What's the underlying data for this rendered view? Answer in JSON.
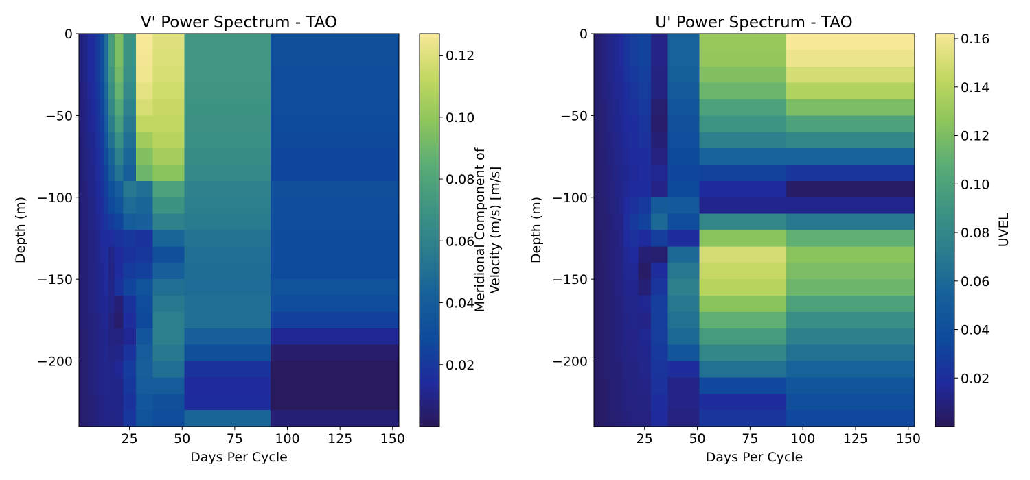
{
  "colormap": [
    "#2a1858",
    "#1f2a9c",
    "#0e4a9c",
    "#16609a",
    "#2a7c8e",
    "#3e9482",
    "#5aad76",
    "#8dc55c",
    "#c3d860",
    "#f7e898"
  ],
  "chart_data": [
    {
      "type": "heatmap",
      "title": "V' Power Spectrum - TAO",
      "xlabel": "Days Per Cycle",
      "ylabel": "Depth (m)",
      "xlim": [
        1,
        153
      ],
      "ylim": [
        -240,
        0
      ],
      "xticks": [
        25,
        50,
        75,
        100,
        125,
        150
      ],
      "yticks": [
        0,
        -50,
        -100,
        -150,
        -200
      ],
      "colorbar": {
        "label_lines": [
          "Meridional Component of",
          "Velocity (m/s) [m/s]"
        ],
        "ticks": [
          0.02,
          0.04,
          0.06,
          0.08,
          0.1,
          0.12
        ],
        "tick_labels": [
          "0.02",
          "0.04",
          "0.06",
          "0.08",
          "0.10",
          "0.12"
        ],
        "range": [
          0.0,
          0.127
        ]
      },
      "x_edges": [
        1,
        3,
        5,
        7,
        9,
        11,
        13,
        15,
        18,
        22,
        28,
        36,
        51,
        92,
        153
      ],
      "y_edges": [
        0,
        -10,
        -20,
        -30,
        -40,
        -50,
        -60,
        -70,
        -80,
        -90,
        -100,
        -110,
        -120,
        -130,
        -140,
        -150,
        -160,
        -170,
        -180,
        -190,
        -200,
        -210,
        -220,
        -230,
        -240
      ],
      "values": [
        [
          0.008,
          0.01,
          0.014,
          0.016,
          0.022,
          0.03,
          0.048,
          0.075,
          0.095,
          0.07,
          0.127,
          0.12,
          0.072,
          0.032
        ],
        [
          0.008,
          0.01,
          0.014,
          0.016,
          0.022,
          0.03,
          0.048,
          0.075,
          0.095,
          0.07,
          0.126,
          0.119,
          0.072,
          0.032
        ],
        [
          0.008,
          0.01,
          0.014,
          0.016,
          0.022,
          0.03,
          0.048,
          0.072,
          0.092,
          0.068,
          0.125,
          0.118,
          0.072,
          0.031
        ],
        [
          0.007,
          0.009,
          0.013,
          0.015,
          0.02,
          0.028,
          0.045,
          0.068,
          0.088,
          0.064,
          0.122,
          0.116,
          0.071,
          0.031
        ],
        [
          0.007,
          0.009,
          0.012,
          0.014,
          0.019,
          0.026,
          0.042,
          0.064,
          0.082,
          0.06,
          0.118,
          0.114,
          0.07,
          0.03
        ],
        [
          0.007,
          0.009,
          0.012,
          0.013,
          0.018,
          0.024,
          0.038,
          0.058,
          0.076,
          0.055,
          0.112,
          0.112,
          0.069,
          0.029
        ],
        [
          0.006,
          0.008,
          0.011,
          0.012,
          0.017,
          0.022,
          0.034,
          0.052,
          0.068,
          0.05,
          0.104,
          0.11,
          0.068,
          0.028
        ],
        [
          0.006,
          0.008,
          0.01,
          0.012,
          0.016,
          0.02,
          0.03,
          0.045,
          0.06,
          0.046,
          0.096,
          0.105,
          0.066,
          0.027
        ],
        [
          0.006,
          0.008,
          0.01,
          0.011,
          0.015,
          0.019,
          0.026,
          0.04,
          0.052,
          0.042,
          0.09,
          0.098,
          0.064,
          0.027
        ],
        [
          0.006,
          0.007,
          0.01,
          0.011,
          0.014,
          0.018,
          0.024,
          0.032,
          0.04,
          0.055,
          0.05,
          0.078,
          0.06,
          0.032
        ],
        [
          0.006,
          0.007,
          0.009,
          0.01,
          0.013,
          0.016,
          0.022,
          0.028,
          0.034,
          0.048,
          0.045,
          0.07,
          0.058,
          0.031
        ],
        [
          0.006,
          0.007,
          0.009,
          0.01,
          0.012,
          0.015,
          0.018,
          0.022,
          0.026,
          0.04,
          0.042,
          0.06,
          0.056,
          0.03
        ],
        [
          0.005,
          0.006,
          0.008,
          0.009,
          0.011,
          0.014,
          0.016,
          0.015,
          0.018,
          0.02,
          0.018,
          0.045,
          0.052,
          0.029
        ],
        [
          0.005,
          0.006,
          0.008,
          0.009,
          0.011,
          0.013,
          0.015,
          0.01,
          0.014,
          0.018,
          0.02,
          0.032,
          0.05,
          0.029
        ],
        [
          0.005,
          0.006,
          0.008,
          0.009,
          0.01,
          0.012,
          0.014,
          0.009,
          0.015,
          0.022,
          0.024,
          0.042,
          0.049,
          0.029
        ],
        [
          0.005,
          0.006,
          0.008,
          0.009,
          0.01,
          0.012,
          0.014,
          0.01,
          0.018,
          0.026,
          0.034,
          0.05,
          0.048,
          0.034
        ],
        [
          0.005,
          0.006,
          0.008,
          0.009,
          0.01,
          0.012,
          0.012,
          0.01,
          0.006,
          0.018,
          0.03,
          0.055,
          0.05,
          0.03
        ],
        [
          0.005,
          0.006,
          0.007,
          0.008,
          0.009,
          0.011,
          0.012,
          0.008,
          0.004,
          0.016,
          0.028,
          0.058,
          0.05,
          0.024
        ],
        [
          0.004,
          0.005,
          0.007,
          0.008,
          0.009,
          0.01,
          0.011,
          0.008,
          0.008,
          0.012,
          0.035,
          0.058,
          0.042,
          0.012
        ],
        [
          0.004,
          0.005,
          0.007,
          0.008,
          0.009,
          0.01,
          0.011,
          0.009,
          0.01,
          0.018,
          0.04,
          0.055,
          0.032,
          0.004
        ],
        [
          0.004,
          0.005,
          0.007,
          0.008,
          0.009,
          0.01,
          0.011,
          0.01,
          0.012,
          0.022,
          0.042,
          0.05,
          0.018,
          0.001
        ],
        [
          0.004,
          0.005,
          0.007,
          0.008,
          0.009,
          0.01,
          0.011,
          0.01,
          0.01,
          0.02,
          0.04,
          0.04,
          0.014,
          0.001
        ],
        [
          0.004,
          0.005,
          0.006,
          0.007,
          0.008,
          0.009,
          0.01,
          0.01,
          0.01,
          0.018,
          0.036,
          0.032,
          0.016,
          0.001
        ],
        [
          0.004,
          0.005,
          0.006,
          0.007,
          0.008,
          0.009,
          0.01,
          0.009,
          0.01,
          0.02,
          0.034,
          0.03,
          0.045,
          0.006
        ]
      ]
    },
    {
      "type": "heatmap",
      "title": "U' Power Spectrum - TAO",
      "xlabel": "Days Per Cycle",
      "ylabel": "Depth (m)",
      "xlim": [
        1,
        153
      ],
      "ylim": [
        -240,
        0
      ],
      "xticks": [
        25,
        50,
        75,
        100,
        125,
        150
      ],
      "yticks": [
        0,
        -50,
        -100,
        -150,
        -200
      ],
      "colorbar": {
        "label_lines": [
          "UVEL"
        ],
        "ticks": [
          0.02,
          0.04,
          0.06,
          0.08,
          0.1,
          0.12,
          0.14,
          0.16
        ],
        "tick_labels": [
          "0.02",
          "0.04",
          "0.06",
          "0.08",
          "0.10",
          "0.12",
          "0.14",
          "0.16"
        ],
        "range": [
          0.0,
          0.162
        ]
      },
      "x_edges": [
        1,
        3,
        5,
        7,
        9,
        11,
        13,
        15,
        18,
        22,
        28,
        36,
        51,
        92,
        153
      ],
      "y_edges": [
        0,
        -10,
        -20,
        -30,
        -40,
        -50,
        -60,
        -70,
        -80,
        -90,
        -100,
        -110,
        -120,
        -130,
        -140,
        -150,
        -160,
        -170,
        -180,
        -190,
        -200,
        -210,
        -220,
        -230,
        -240
      ],
      "values": [
        [
          0.006,
          0.008,
          0.01,
          0.012,
          0.014,
          0.016,
          0.018,
          0.024,
          0.028,
          0.032,
          0.012,
          0.055,
          0.13,
          0.162
        ],
        [
          0.006,
          0.008,
          0.01,
          0.012,
          0.014,
          0.016,
          0.018,
          0.024,
          0.028,
          0.032,
          0.012,
          0.055,
          0.128,
          0.158
        ],
        [
          0.006,
          0.008,
          0.01,
          0.012,
          0.014,
          0.016,
          0.017,
          0.022,
          0.026,
          0.03,
          0.011,
          0.054,
          0.122,
          0.15
        ],
        [
          0.006,
          0.008,
          0.01,
          0.011,
          0.013,
          0.015,
          0.016,
          0.02,
          0.024,
          0.028,
          0.011,
          0.05,
          0.114,
          0.138
        ],
        [
          0.006,
          0.007,
          0.009,
          0.011,
          0.013,
          0.014,
          0.016,
          0.019,
          0.022,
          0.026,
          0.006,
          0.045,
          0.1,
          0.12
        ],
        [
          0.006,
          0.007,
          0.009,
          0.011,
          0.012,
          0.014,
          0.015,
          0.018,
          0.02,
          0.024,
          0.005,
          0.042,
          0.09,
          0.1
        ],
        [
          0.005,
          0.007,
          0.009,
          0.01,
          0.012,
          0.013,
          0.015,
          0.017,
          0.019,
          0.022,
          0.008,
          0.04,
          0.075,
          0.08
        ],
        [
          0.005,
          0.007,
          0.008,
          0.01,
          0.011,
          0.013,
          0.014,
          0.016,
          0.018,
          0.02,
          0.01,
          0.036,
          0.055,
          0.055
        ],
        [
          0.005,
          0.006,
          0.008,
          0.009,
          0.011,
          0.012,
          0.014,
          0.015,
          0.017,
          0.019,
          0.015,
          0.034,
          0.032,
          0.025
        ],
        [
          0.005,
          0.006,
          0.008,
          0.009,
          0.01,
          0.012,
          0.013,
          0.016,
          0.018,
          0.02,
          0.012,
          0.036,
          0.018,
          0.004
        ],
        [
          0.005,
          0.006,
          0.007,
          0.009,
          0.01,
          0.011,
          0.013,
          0.018,
          0.022,
          0.026,
          0.05,
          0.048,
          0.014,
          0.014
        ],
        [
          0.005,
          0.006,
          0.007,
          0.008,
          0.01,
          0.011,
          0.012,
          0.02,
          0.026,
          0.032,
          0.06,
          0.038,
          0.08,
          0.07
        ],
        [
          0.004,
          0.005,
          0.007,
          0.008,
          0.009,
          0.01,
          0.012,
          0.018,
          0.022,
          0.018,
          0.03,
          0.02,
          0.125,
          0.11
        ],
        [
          0.004,
          0.005,
          0.007,
          0.008,
          0.009,
          0.01,
          0.011,
          0.016,
          0.018,
          0.008,
          0.006,
          0.06,
          0.15,
          0.125
        ],
        [
          0.004,
          0.005,
          0.006,
          0.008,
          0.009,
          0.01,
          0.011,
          0.015,
          0.016,
          0.004,
          0.02,
          0.07,
          0.145,
          0.12
        ],
        [
          0.004,
          0.005,
          0.006,
          0.007,
          0.008,
          0.01,
          0.011,
          0.014,
          0.014,
          0.008,
          0.025,
          0.075,
          0.14,
          0.115
        ],
        [
          0.004,
          0.005,
          0.006,
          0.007,
          0.008,
          0.009,
          0.01,
          0.013,
          0.013,
          0.015,
          0.03,
          0.07,
          0.125,
          0.1
        ],
        [
          0.004,
          0.005,
          0.006,
          0.007,
          0.008,
          0.009,
          0.01,
          0.012,
          0.013,
          0.012,
          0.03,
          0.065,
          0.11,
          0.085
        ],
        [
          0.004,
          0.005,
          0.006,
          0.007,
          0.008,
          0.009,
          0.01,
          0.012,
          0.012,
          0.015,
          0.028,
          0.06,
          0.095,
          0.075
        ],
        [
          0.004,
          0.005,
          0.006,
          0.007,
          0.008,
          0.009,
          0.01,
          0.011,
          0.012,
          0.014,
          0.026,
          0.045,
          0.08,
          0.065
        ],
        [
          0.004,
          0.005,
          0.006,
          0.007,
          0.008,
          0.008,
          0.009,
          0.011,
          0.011,
          0.013,
          0.024,
          0.02,
          0.065,
          0.055
        ],
        [
          0.003,
          0.004,
          0.005,
          0.006,
          0.007,
          0.008,
          0.009,
          0.01,
          0.011,
          0.012,
          0.022,
          0.012,
          0.035,
          0.045
        ],
        [
          0.003,
          0.004,
          0.005,
          0.006,
          0.007,
          0.008,
          0.009,
          0.01,
          0.01,
          0.011,
          0.02,
          0.012,
          0.02,
          0.04
        ],
        [
          0.003,
          0.004,
          0.005,
          0.006,
          0.006,
          0.007,
          0.008,
          0.009,
          0.01,
          0.01,
          0.018,
          0.01,
          0.025,
          0.035
        ]
      ]
    }
  ]
}
